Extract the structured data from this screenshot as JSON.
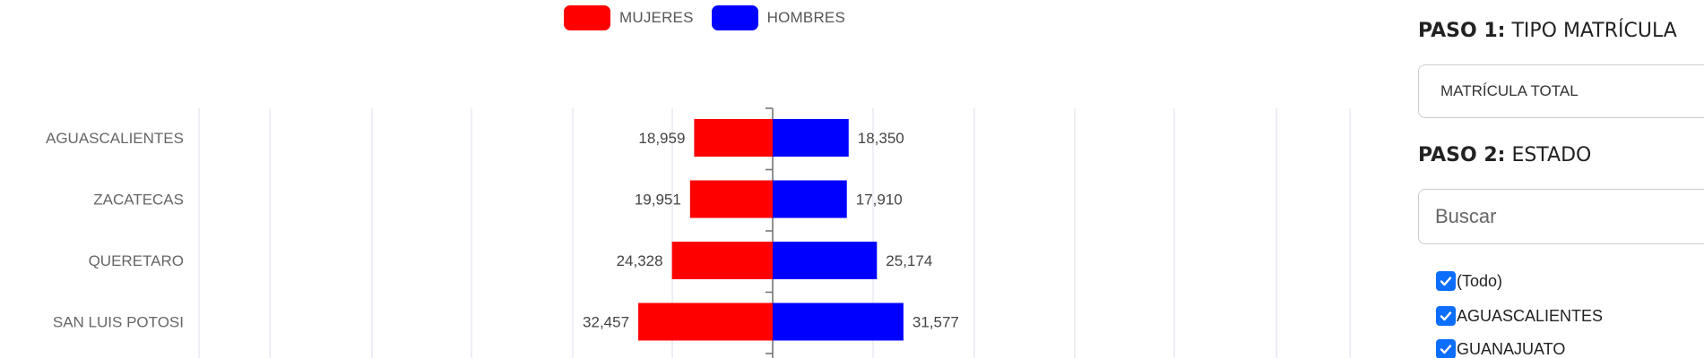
{
  "legend": {
    "mujeres": {
      "label": "MUJERES",
      "color": "#ff0000"
    },
    "hombres": {
      "label": "HOMBRES",
      "color": "#0000ff"
    }
  },
  "chart_data": {
    "type": "bar",
    "orientation": "horizontal-diverging",
    "categories": [
      "AGUASCALIENTES",
      "ZACATECAS",
      "QUERETARO",
      "SAN LUIS POTOSI"
    ],
    "series": [
      {
        "name": "MUJERES",
        "color": "#ff0000",
        "values": [
          18959,
          19951,
          24328,
          32457
        ],
        "labels": [
          "18,959",
          "19,951",
          "24,328",
          "32,457"
        ]
      },
      {
        "name": "HOMBRES",
        "color": "#0000ff",
        "values": [
          18350,
          17910,
          25174,
          31577
        ],
        "labels": [
          "18,350",
          "17,910",
          "25,174",
          "31,577"
        ]
      }
    ],
    "title": "",
    "xlabel": "",
    "ylabel": "",
    "grid": true,
    "legend_position": "top"
  },
  "panel": {
    "step1": {
      "strong": "PASO 1:",
      "rest": " TIPO MATRÍCULA"
    },
    "select_value": "MATRÍCULA TOTAL",
    "step2": {
      "strong": "PASO 2:",
      "rest": " ESTADO"
    },
    "search_placeholder": "Buscar",
    "checkboxes": [
      {
        "label": "(Todo)",
        "checked": true
      },
      {
        "label": "AGUASCALIENTES",
        "checked": true
      },
      {
        "label": "GUANAJUATO",
        "checked": true
      }
    ]
  }
}
